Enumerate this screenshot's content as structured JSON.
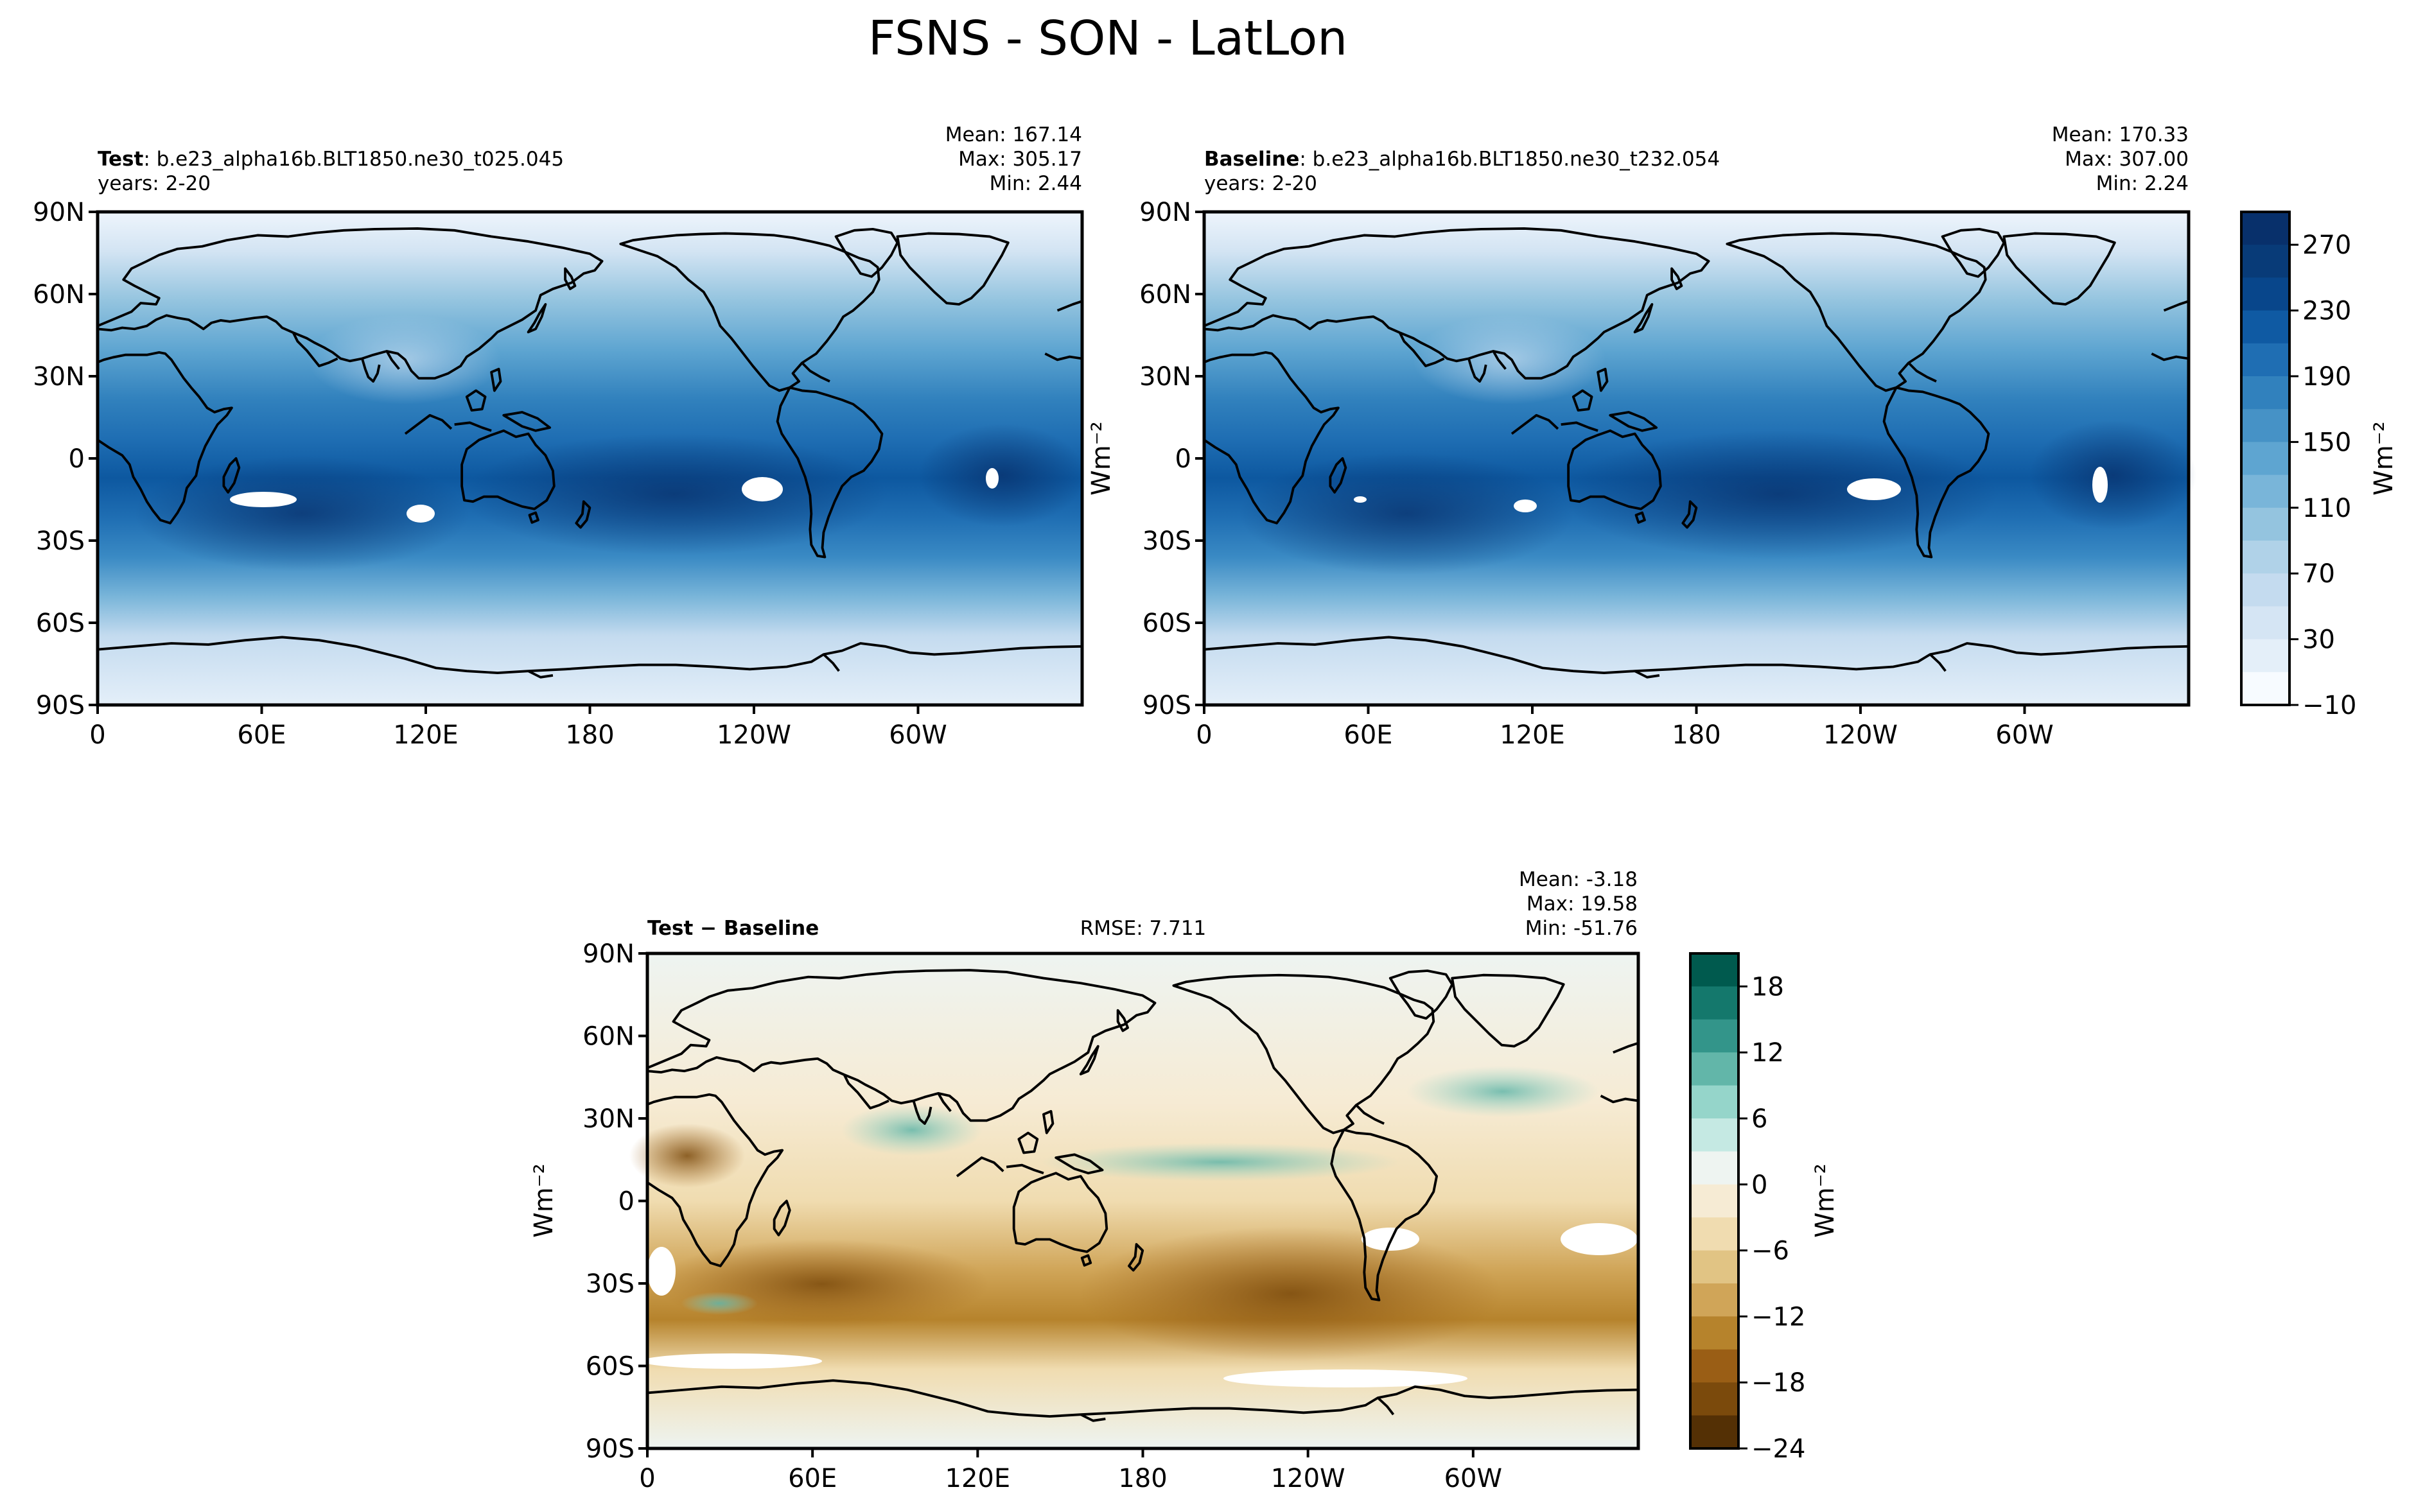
{
  "figure": {
    "title": "FSNS - SON - LatLon",
    "panels": [
      {
        "id": "test",
        "label_bold": "Test",
        "label_rest": ": b.e23_alpha16b.BLT1850.ne30_t025.045",
        "years": "years: 2-20",
        "stats": [
          "Mean: 167.14",
          "Max: 305.17",
          "Min:  2.44"
        ],
        "ylabel": "",
        "rmse": ""
      },
      {
        "id": "baseline",
        "label_bold": "Baseline",
        "label_rest": ": b.e23_alpha16b.BLT1850.ne30_t232.054",
        "years": "years: 2-20",
        "stats": [
          "Mean: 170.33",
          "Max: 307.00",
          "Min:  2.24"
        ],
        "ylabel": "Wm⁻²",
        "rmse": ""
      },
      {
        "id": "diff",
        "label_bold": "Test − Baseline",
        "label_rest": "",
        "years": "",
        "stats": [
          "Mean: -3.18",
          "Max: 19.58",
          "Min: -51.76"
        ],
        "ylabel": "Wm⁻²",
        "rmse": "RMSE: 7.711"
      }
    ],
    "colorbars": [
      {
        "id": "main",
        "label": "Wm⁻²",
        "ticks": [
          "270",
          "230",
          "190",
          "150",
          "110",
          "70",
          "30",
          "−10"
        ]
      },
      {
        "id": "diff",
        "label": "Wm⁻²",
        "ticks": [
          "18",
          "12",
          "6",
          "0",
          "−6",
          "−12",
          "−18",
          "−24"
        ]
      }
    ]
  },
  "chart_data": [
    {
      "type": "heatmap",
      "title": "Test: b.e23_alpha16b.BLT1850.ne30_t025.045",
      "variable": "FSNS",
      "season": "SON",
      "units": "Wm-2",
      "years": "2-20",
      "mean": 167.14,
      "max": 305.17,
      "min": 2.44,
      "xlim": [
        0,
        360
      ],
      "ylim": [
        -90,
        90
      ],
      "xticks": [
        "0",
        "60E",
        "120E",
        "180",
        "120W",
        "60W"
      ],
      "yticks": [
        "90N",
        "60N",
        "30N",
        "0",
        "30S",
        "60S",
        "90S"
      ],
      "colormap": "Blues",
      "clim": [
        -10,
        290
      ],
      "level_step": 20
    },
    {
      "type": "heatmap",
      "title": "Baseline: b.e23_alpha16b.BLT1850.ne30_t232.054",
      "variable": "FSNS",
      "season": "SON",
      "units": "Wm-2",
      "years": "2-20",
      "mean": 170.33,
      "max": 307.0,
      "min": 2.24,
      "xlim": [
        0,
        360
      ],
      "ylim": [
        -90,
        90
      ],
      "xticks": [
        "0",
        "60E",
        "120E",
        "180",
        "120W",
        "60W"
      ],
      "yticks": [
        "90N",
        "60N",
        "30N",
        "0",
        "30S",
        "60S",
        "90S"
      ],
      "colormap": "Blues",
      "clim": [
        -10,
        290
      ],
      "level_step": 20
    },
    {
      "type": "heatmap",
      "title": "Test − Baseline",
      "variable": "FSNS",
      "season": "SON",
      "units": "Wm-2",
      "rmse": 7.711,
      "mean": -3.18,
      "max": 19.58,
      "min": -51.76,
      "xlim": [
        0,
        360
      ],
      "ylim": [
        -90,
        90
      ],
      "xticks": [
        "0",
        "60E",
        "120E",
        "180",
        "120W",
        "60W"
      ],
      "yticks": [
        "90N",
        "60N",
        "30N",
        "0",
        "30S",
        "60S",
        "90S"
      ],
      "colormap": "BrBG",
      "clim": [
        -24,
        21
      ],
      "level_step": 3
    }
  ],
  "colors": {
    "blues": [
      "#f7fbff",
      "#e4eff9",
      "#d5e5f4",
      "#c4dbef",
      "#b0d2e8",
      "#94c4df",
      "#79b5d9",
      "#5ea5d1",
      "#4692c6",
      "#3181bd",
      "#1f6eb3",
      "#0f5aa3",
      "#08468b",
      "#083b78",
      "#08306b"
    ],
    "brbg": [
      "#543005",
      "#7b4a0c",
      "#9a5e15",
      "#b6832c",
      "#d0a558",
      "#e1c484",
      "#f0dcb0",
      "#f6ebd4",
      "#eef4f1",
      "#c5e9e3",
      "#95d5ca",
      "#62b6a9",
      "#33958a",
      "#14786c",
      "#005a4e"
    ],
    "land_outline": "#000000",
    "missing": "#ffffff"
  }
}
